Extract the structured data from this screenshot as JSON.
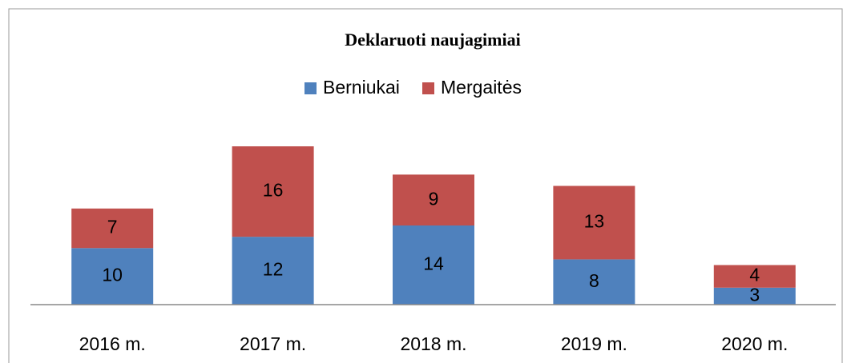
{
  "chart_data": {
    "type": "stacked_bar",
    "title": "Deklaruoti naujagimiai",
    "categories": [
      "2016 m.",
      "2017 m.",
      "2018 m.",
      "2019 m.",
      "2020 m."
    ],
    "series": [
      {
        "name": "Berniukai",
        "color": "#4f81bd",
        "values": [
          10,
          12,
          14,
          8,
          3
        ]
      },
      {
        "name": "Mergaitės",
        "color": "#c0504d",
        "values": [
          7,
          16,
          9,
          13,
          4
        ]
      }
    ],
    "legend": "top"
  }
}
